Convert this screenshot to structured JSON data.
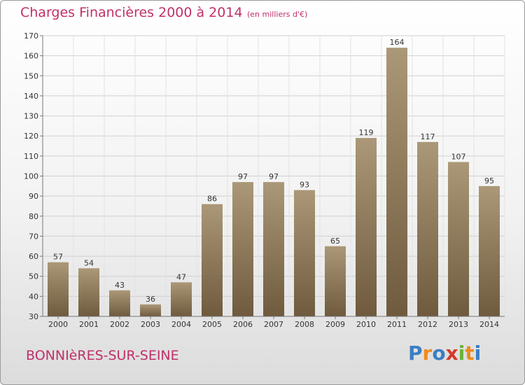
{
  "header": {
    "title": "Charges Financières 2000 à 2014",
    "subtitle": "(en milliers d'€)"
  },
  "footer": {
    "commune": "BONNIèRES-SUR-SEINE",
    "logo": "Proxiti"
  },
  "colors": {
    "accent": "#c0306a",
    "bar_top": "#ab9878",
    "bar_bottom": "#6f5a3d",
    "logo_letters": [
      "#3a7fc4",
      "#f08a1c",
      "#3a7fc4",
      "#d63a2a",
      "#6ab43a",
      "#f08a1c",
      "#3a7fc4"
    ]
  },
  "chart_data": {
    "type": "bar",
    "title": "Charges Financières 2000 à 2014",
    "subtitle": "(en milliers d'€)",
    "categories": [
      "2000",
      "2001",
      "2002",
      "2003",
      "2004",
      "2005",
      "2006",
      "2007",
      "2008",
      "2009",
      "2010",
      "2011",
      "2012",
      "2013",
      "2014"
    ],
    "values": [
      57,
      54,
      43,
      36,
      47,
      86,
      97,
      97,
      93,
      65,
      119,
      164,
      117,
      107,
      95
    ],
    "ylim": [
      30,
      170
    ],
    "yticks": [
      30,
      40,
      50,
      60,
      70,
      80,
      90,
      100,
      110,
      120,
      130,
      140,
      150,
      160,
      170
    ],
    "grid": true,
    "xlabel": "",
    "ylabel": ""
  }
}
